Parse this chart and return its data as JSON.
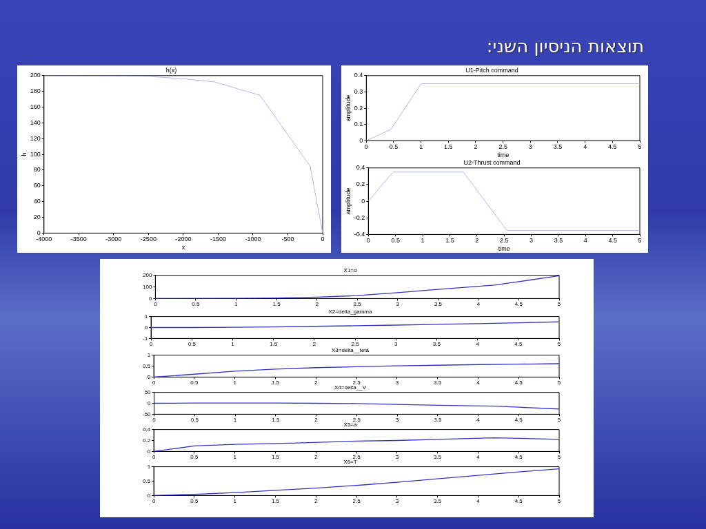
{
  "chart_data": [
    {
      "type": "other",
      "title": "תוצאות הניסיון השני:"
    },
    {
      "type": "line",
      "title": "h(x)",
      "xlabel": "x",
      "ylabel": "h",
      "color": "#b4b8f4",
      "x": [
        -4000,
        -2500,
        -2000,
        -1550,
        -900,
        -180,
        0
      ],
      "values": [
        200,
        199,
        196,
        192,
        175,
        85,
        0
      ],
      "xlim": [
        -4000,
        0
      ],
      "ylim": [
        0,
        200
      ],
      "xticks": [
        -4000,
        -3500,
        -3000,
        -2500,
        -2000,
        -1500,
        -1000,
        -500,
        0
      ],
      "yticks": [
        0,
        20,
        40,
        60,
        80,
        100,
        120,
        140,
        160,
        180,
        200
      ]
    },
    {
      "type": "line",
      "title": "U1-Pitch command",
      "xlabel": "time",
      "ylabel": "amplitude",
      "color": "#b4b8f4",
      "x": [
        0,
        0.45,
        1,
        5
      ],
      "values": [
        0,
        0.07,
        0.35,
        0.35
      ],
      "xlim": [
        0,
        5
      ],
      "ylim": [
        0,
        0.4
      ],
      "xticks": [
        0,
        0.5,
        1,
        1.5,
        2,
        2.5,
        3,
        3.5,
        4,
        4.5,
        5
      ],
      "yticks": [
        0,
        0.1,
        0.2,
        0.3,
        0.4
      ]
    },
    {
      "type": "line",
      "title": "U2-Thrust command",
      "xlabel": "time",
      "ylabel": "amplitude",
      "color": "#b4b8f4",
      "x": [
        0,
        0.45,
        1.75,
        2.55,
        5
      ],
      "values": [
        0,
        0.35,
        0.35,
        -0.35,
        -0.35
      ],
      "xlim": [
        0,
        5
      ],
      "ylim": [
        -0.4,
        0.4
      ],
      "xticks": [
        0,
        0.5,
        1,
        1.5,
        2,
        2.5,
        3,
        3.5,
        4,
        4.5,
        5
      ],
      "yticks": [
        -0.4,
        -0.2,
        0,
        0.2,
        0.4
      ]
    },
    {
      "type": "line",
      "title": "X1=d",
      "color": "#3333cc",
      "x": [
        0,
        1,
        1.5,
        2,
        2.5,
        3,
        3.5,
        4,
        4.2,
        4.5,
        5
      ],
      "values": [
        0,
        1,
        4,
        12,
        25,
        50,
        78,
        105,
        115,
        145,
        195
      ],
      "xlim": [
        0,
        5
      ],
      "ylim": [
        0,
        200
      ],
      "xticks": [
        0,
        0.5,
        1,
        1.5,
        2,
        2.5,
        3,
        3.5,
        4,
        4.5,
        5
      ],
      "yticks": [
        0,
        100,
        200
      ]
    },
    {
      "type": "line",
      "title": "X2=delta_gamma",
      "color": "#3333cc",
      "x": [
        0,
        0.5,
        1,
        1.5,
        2,
        2.5,
        3,
        3.5,
        4,
        4.5,
        5
      ],
      "values": [
        0,
        0,
        0.02,
        0.06,
        0.11,
        0.16,
        0.22,
        0.29,
        0.36,
        0.43,
        0.52
      ],
      "xlim": [
        0,
        5
      ],
      "ylim": [
        -1,
        1
      ],
      "xticks": [
        0,
        0.5,
        1,
        1.5,
        2,
        2.5,
        3,
        3.5,
        4,
        4.5,
        5
      ],
      "yticks": [
        -1,
        0,
        1
      ]
    },
    {
      "type": "line",
      "title": "X3=delta__teta",
      "color": "#3333cc",
      "x": [
        0,
        0.5,
        1,
        1.5,
        2,
        2.5,
        3,
        3.5,
        4,
        4.5,
        5
      ],
      "values": [
        0,
        0.13,
        0.27,
        0.36,
        0.43,
        0.47,
        0.51,
        0.54,
        0.57,
        0.59,
        0.61
      ],
      "xlim": [
        0,
        5
      ],
      "ylim": [
        0,
        1
      ],
      "xticks": [
        0,
        0.5,
        1,
        1.5,
        2,
        2.5,
        3,
        3.5,
        4,
        4.5,
        5
      ],
      "yticks": [
        0,
        0.5,
        1
      ]
    },
    {
      "type": "line",
      "title": "X4=delta__V",
      "color": "#3333cc",
      "x": [
        0,
        0.5,
        1,
        1.5,
        2,
        2.5,
        3,
        3.5,
        4.2,
        4.5,
        5
      ],
      "values": [
        0,
        1,
        1,
        1,
        0,
        -1,
        -5,
        -9,
        -13,
        -18,
        -26
      ],
      "xlim": [
        0,
        5
      ],
      "ylim": [
        -50,
        50
      ],
      "xticks": [
        0,
        0.5,
        1,
        1.5,
        2,
        2.5,
        3,
        3.5,
        4,
        4.5,
        5
      ],
      "yticks": [
        -50,
        0,
        50
      ]
    },
    {
      "type": "line",
      "title": "X5=a",
      "color": "#3333cc",
      "x": [
        0,
        0.5,
        1,
        1.7,
        2.5,
        3,
        3.5,
        4.2,
        4.5,
        5
      ],
      "values": [
        0,
        0.1,
        0.13,
        0.15,
        0.19,
        0.2,
        0.22,
        0.25,
        0.24,
        0.22
      ],
      "xlim": [
        0,
        5
      ],
      "ylim": [
        0,
        0.4
      ],
      "xticks": [
        0,
        0.5,
        1,
        1.5,
        2,
        2.5,
        3,
        3.5,
        4,
        4.5,
        5
      ],
      "yticks": [
        0,
        0.2,
        0.4
      ]
    },
    {
      "type": "line",
      "title": "X6=T",
      "color": "#3333cc",
      "x": [
        0,
        0.5,
        1,
        1.5,
        2,
        2.5,
        3,
        3.5,
        4,
        4.5,
        5
      ],
      "values": [
        0,
        0.04,
        0.1,
        0.18,
        0.26,
        0.35,
        0.46,
        0.58,
        0.7,
        0.82,
        0.93
      ],
      "xlim": [
        0,
        5
      ],
      "ylim": [
        0,
        1
      ],
      "xticks": [
        0,
        0.5,
        1,
        1.5,
        2,
        2.5,
        3,
        3.5,
        4,
        4.5,
        5
      ],
      "yticks": [
        0,
        0.5,
        1
      ]
    }
  ]
}
